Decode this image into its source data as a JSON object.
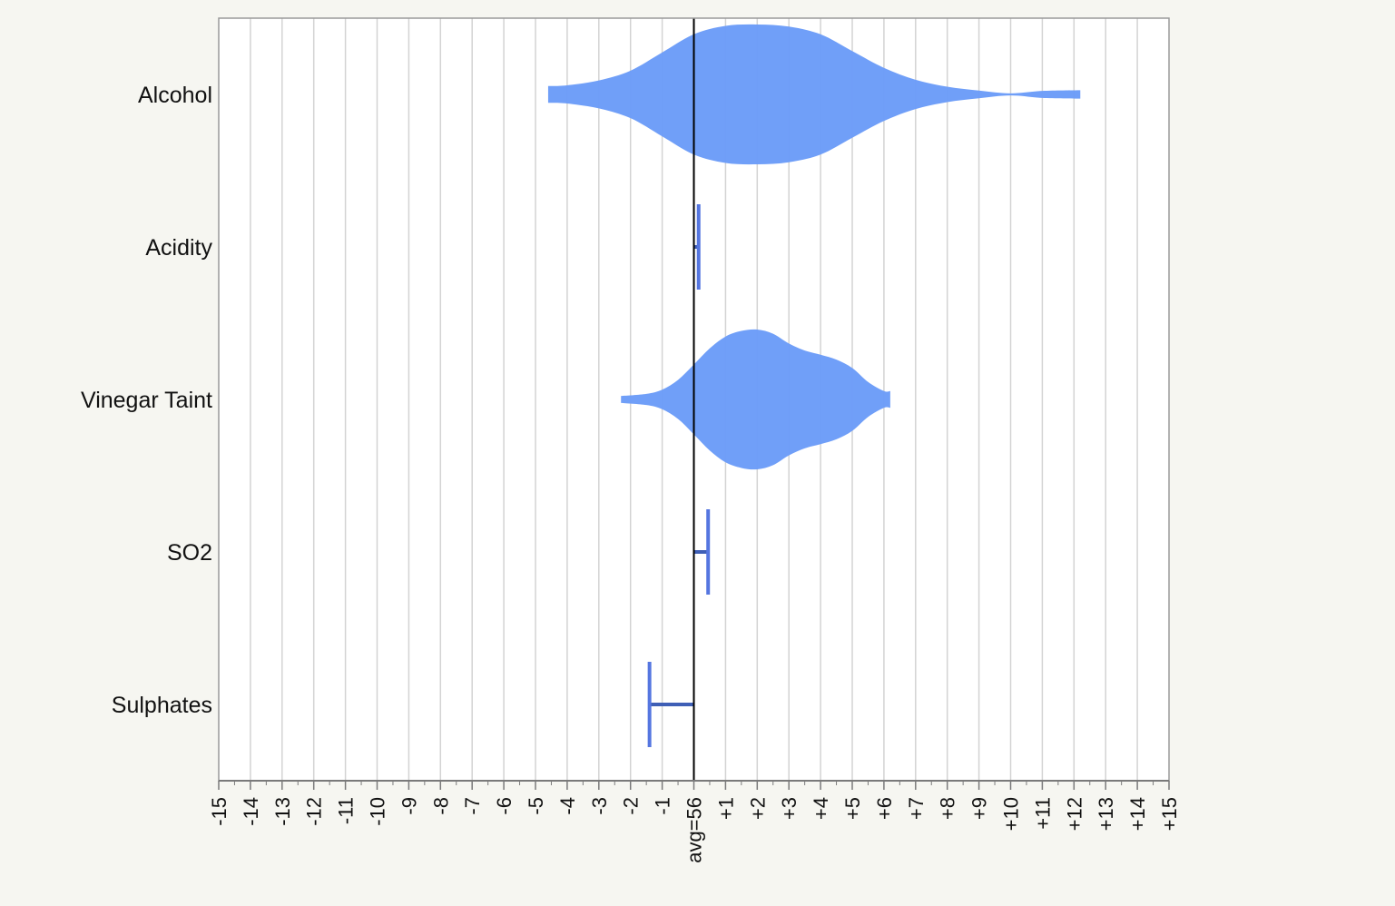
{
  "chart_data": {
    "type": "violin",
    "title": "",
    "xlabel": "",
    "ylabel": "",
    "xlim": [
      -15,
      15
    ],
    "reference": {
      "x": 0,
      "label": "avg=56"
    },
    "categories": [
      "Alcohol",
      "Acidity",
      "Vinegar Taint",
      "SO2",
      "Sulphates"
    ],
    "tick_labels": [
      "-15",
      "-14",
      "-13",
      "-12",
      "-11",
      "-10",
      "-9",
      "-8",
      "-7",
      "-6",
      "-5",
      "-4",
      "-3",
      "-2",
      "-1",
      "avg=56",
      "+1",
      "+2",
      "+3",
      "+4",
      "+5",
      "+6",
      "+7",
      "+8",
      "+9",
      "+10",
      "+11",
      "+12",
      "+13",
      "+14",
      "+15"
    ],
    "series": [
      {
        "category": "Alcohol",
        "kind": "density",
        "min": -4.6,
        "max": 12.2,
        "peak": 2.0,
        "profile": [
          [
            -4.6,
            0.12
          ],
          [
            -4.0,
            0.13
          ],
          [
            -3.0,
            0.2
          ],
          [
            -2.0,
            0.34
          ],
          [
            -1.0,
            0.6
          ],
          [
            0.0,
            0.86
          ],
          [
            1.0,
            0.98
          ],
          [
            2.0,
            1.0
          ],
          [
            3.0,
            0.97
          ],
          [
            4.0,
            0.86
          ],
          [
            5.0,
            0.62
          ],
          [
            6.0,
            0.38
          ],
          [
            7.0,
            0.21
          ],
          [
            8.0,
            0.11
          ],
          [
            9.0,
            0.055
          ],
          [
            10.0,
            0.015
          ],
          [
            11.0,
            0.05
          ],
          [
            12.2,
            0.06
          ]
        ]
      },
      {
        "category": "Acidity",
        "kind": "point",
        "value": 0.15
      },
      {
        "category": "Vinegar Taint",
        "kind": "density",
        "min": -2.3,
        "max": 6.2,
        "peak": 2.0,
        "profile": [
          [
            -2.3,
            0.05
          ],
          [
            -1.5,
            0.08
          ],
          [
            -1.0,
            0.14
          ],
          [
            -0.5,
            0.28
          ],
          [
            0.0,
            0.5
          ],
          [
            0.5,
            0.73
          ],
          [
            1.0,
            0.9
          ],
          [
            1.5,
            0.98
          ],
          [
            2.0,
            1.0
          ],
          [
            2.5,
            0.94
          ],
          [
            3.0,
            0.8
          ],
          [
            3.5,
            0.7
          ],
          [
            4.0,
            0.64
          ],
          [
            4.5,
            0.57
          ],
          [
            5.0,
            0.45
          ],
          [
            5.5,
            0.25
          ],
          [
            6.0,
            0.12
          ],
          [
            6.2,
            0.12
          ]
        ]
      },
      {
        "category": "SO2",
        "kind": "point",
        "value": 0.45
      },
      {
        "category": "Sulphates",
        "kind": "point",
        "value": -1.4
      }
    ],
    "colors": {
      "fill": "#6b9cf8",
      "marker": "#5576e0",
      "connector": "#3f5fb6",
      "grid": "#d3d3d3",
      "reference_line": "#000000",
      "axis": "#9a9a9a"
    },
    "grid": true
  }
}
